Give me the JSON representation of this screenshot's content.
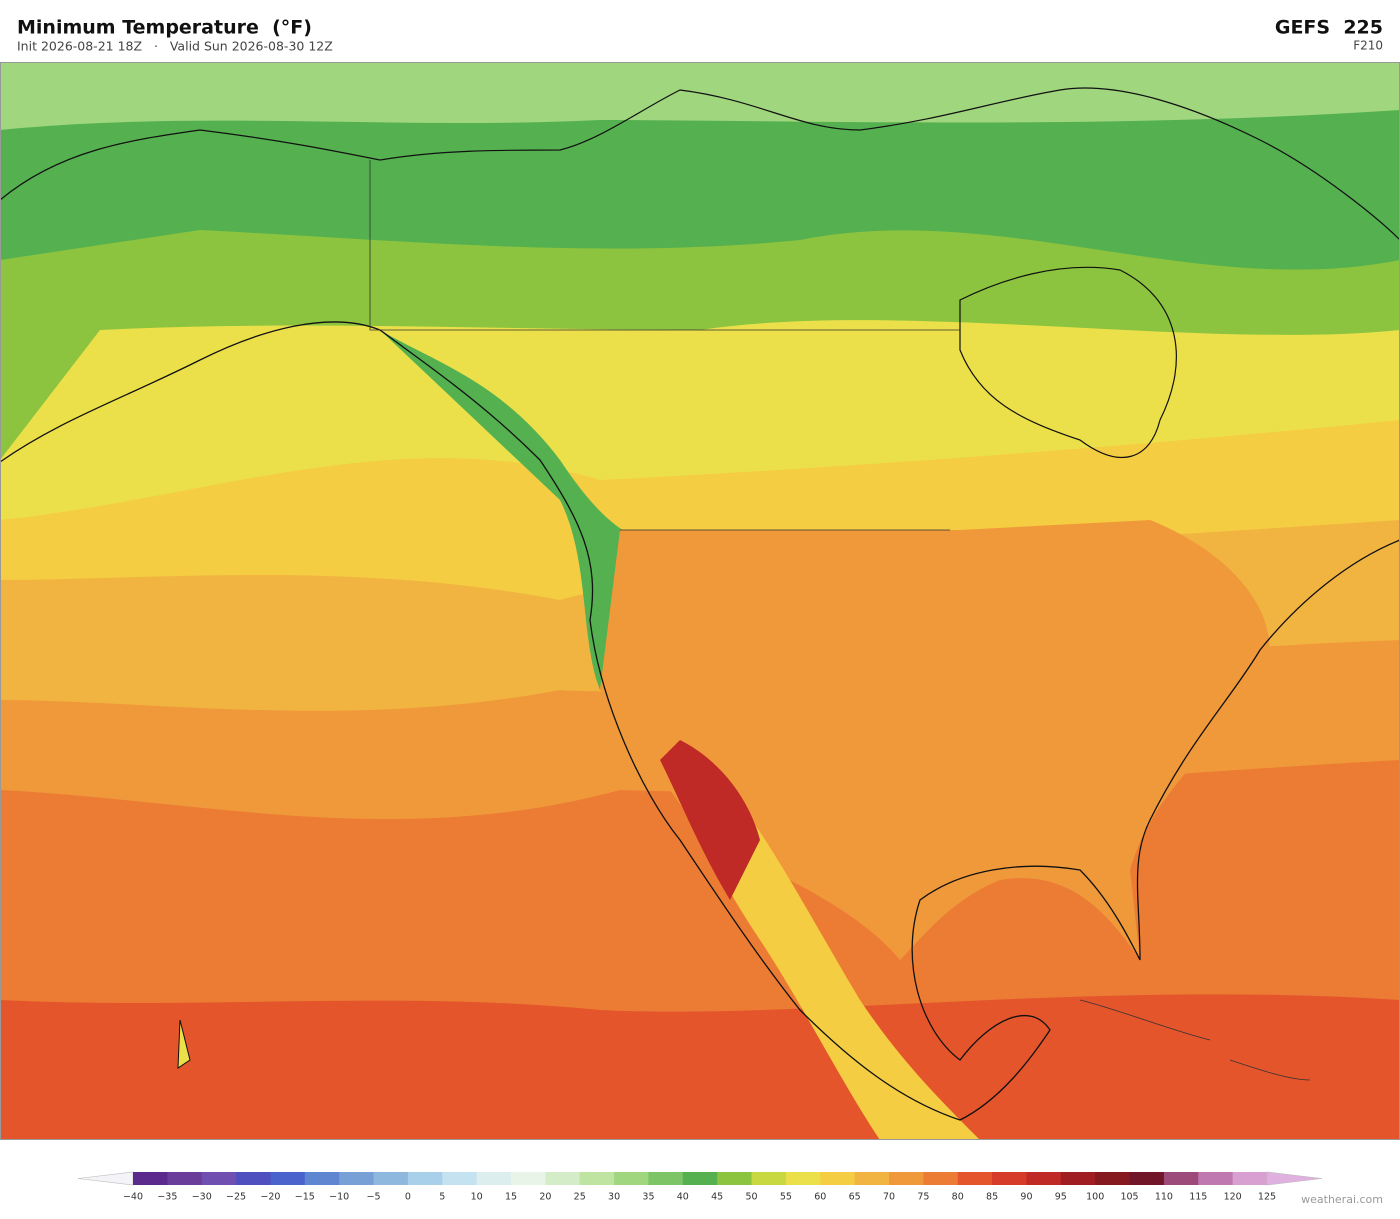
{
  "header": {
    "title": "Minimum Temperature  (°F)",
    "subtitle": "Init 2026-08-21 18Z   ·   Valid Sun 2026-08-30 12Z",
    "model": "GEFS  225",
    "forecast_hour": "F210"
  },
  "colorbar": {
    "ticks": [
      "−40",
      "−35",
      "−30",
      "−25",
      "−20",
      "−15",
      "−10",
      "−5",
      "0",
      "5",
      "10",
      "15",
      "20",
      "25",
      "30",
      "35",
      "40",
      "45",
      "50",
      "55",
      "60",
      "65",
      "70",
      "75",
      "80",
      "85",
      "90",
      "95",
      "100",
      "105",
      "110",
      "115",
      "120",
      "125"
    ],
    "colors": [
      "#5b2a8c",
      "#6a3d9a",
      "#6f4fb0",
      "#4f4fc0",
      "#4a63cc",
      "#5f86d1",
      "#76a0d6",
      "#8fb8de",
      "#a8d0ea",
      "#c4e2f0",
      "#dcefee",
      "#e8f4e8",
      "#d4ecc8",
      "#bfe3a0",
      "#a0d67e",
      "#7cc466",
      "#55b050",
      "#8cc43f",
      "#c8d840",
      "#ece04a",
      "#f4cd42",
      "#f2b440",
      "#f0993a",
      "#ec7c34",
      "#e4552c",
      "#d63a28",
      "#c02a26",
      "#a01e22",
      "#861820",
      "#701628",
      "#9c4a7a",
      "#c078b0",
      "#d8a0d0"
    ],
    "low_color": "#f4f4f8",
    "high_color": "#e0b0e0"
  },
  "footer": {
    "watermark": "weatherai.com"
  }
}
